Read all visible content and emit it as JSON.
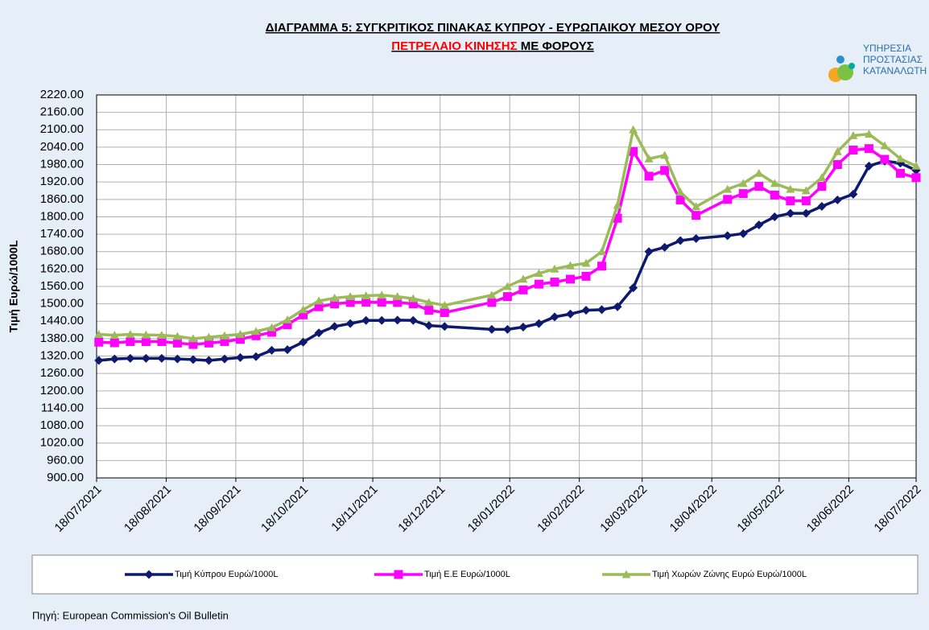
{
  "chart_data": {
    "type": "line",
    "title": "ΔΙΑΓΡΑΜΜΑ 5: ΣΥΓΚΡΙΤΙΚΟΣ ΠΙΝΑΚΑΣ ΚΥΠΡΟΥ - ΕΥΡΩΠΑΙΚΟΥ ΜΕΣΟΥ ΟΡΟΥ",
    "subtitle": [
      "ΠΕΤΡΕΛΑΙΟ ΚΙΝΗΣΗΣ",
      "ΜΕ  ΦΟΡΟΥΣ"
    ],
    "subtitle_colors": [
      "#ff0000",
      "#000000"
    ],
    "ylabel": "Τιμή Ευρώ/1000L",
    "source": "Πηγή: European Commission's Oil Bulletin",
    "logo": [
      "ΥΠΗΡΕΣΙΑ",
      "ΠΡΟΣΤΑΣΙΑΣ",
      "ΚΑΤΑΝΑΛΩΤΗ"
    ],
    "x": [
      "19/07/2021",
      "26/07/2021",
      "02/08/2021",
      "09/08/2021",
      "16/08/2021",
      "23/08/2021",
      "30/08/2021",
      "06/09/2021",
      "13/09/2021",
      "20/09/2021",
      "27/09/2021",
      "04/10/2021",
      "11/10/2021",
      "18/10/2021",
      "25/10/2021",
      "01/11/2021",
      "08/11/2021",
      "15/11/2021",
      "22/11/2021",
      "29/11/2021",
      "06/12/2021",
      "13/12/2021",
      "20/12/2021",
      "10/01/2022",
      "17/01/2022",
      "24/01/2022",
      "31/01/2022",
      "07/02/2022",
      "14/02/2022",
      "21/02/2022",
      "28/02/2022",
      "07/03/2022",
      "14/03/2022",
      "21/03/2022",
      "28/03/2022",
      "04/04/2022",
      "11/04/2022",
      "25/04/2022",
      "02/05/2022",
      "09/05/2022",
      "16/05/2022",
      "23/05/2022",
      "30/05/2022",
      "06/06/2022",
      "13/06/2022",
      "20/06/2022",
      "27/06/2022",
      "04/07/2022",
      "11/07/2022",
      "18/07/2022"
    ],
    "series": [
      {
        "name": "Τιμή Κύπρου Ευρώ/1000L",
        "color": "#0d1a6e",
        "marker": "diamond",
        "values": [
          1305,
          1310,
          1312,
          1312,
          1312,
          1310,
          1308,
          1305,
          1310,
          1315,
          1318,
          1340,
          1342,
          1368,
          1400,
          1422,
          1432,
          1443,
          1443,
          1444,
          1443,
          1425,
          1422,
          1412,
          1412,
          1420,
          1432,
          1455,
          1465,
          1478,
          1480,
          1490,
          1555,
          1680,
          1695,
          1718,
          1725,
          1735,
          1742,
          1772,
          1800,
          1812,
          1812,
          1836,
          1858,
          1878,
          1975,
          1992,
          1985,
          1960
        ]
      },
      {
        "name": "Τιμή Ε.Ε Ευρώ/1000L",
        "color": "#ff00ff",
        "marker": "square",
        "values": [
          1368,
          1366,
          1370,
          1370,
          1370,
          1365,
          1360,
          1365,
          1370,
          1378,
          1390,
          1402,
          1428,
          1462,
          1490,
          1500,
          1505,
          1506,
          1506,
          1505,
          1500,
          1478,
          1470,
          1505,
          1525,
          1548,
          1568,
          1575,
          1585,
          1595,
          1630,
          1795,
          2025,
          1940,
          1960,
          1858,
          1805,
          1860,
          1880,
          1905,
          1875,
          1855,
          1855,
          1905,
          1980,
          2030,
          2035,
          1998,
          1950,
          1935
        ]
      },
      {
        "name": "Τιμή Χωρών Ζώνης Ευρώ Ευρώ/1000L",
        "color": "#9bbb59",
        "marker": "triangle",
        "values": [
          1395,
          1392,
          1395,
          1393,
          1392,
          1388,
          1380,
          1385,
          1390,
          1395,
          1405,
          1418,
          1445,
          1480,
          1510,
          1520,
          1525,
          1528,
          1530,
          1525,
          1518,
          1505,
          1495,
          1530,
          1560,
          1585,
          1605,
          1620,
          1632,
          1640,
          1680,
          1840,
          2100,
          2000,
          2012,
          1885,
          1835,
          1895,
          1915,
          1950,
          1915,
          1895,
          1890,
          1935,
          2025,
          2080,
          2085,
          2045,
          2000,
          1975
        ]
      }
    ],
    "xlim": [
      "18/07/2021",
      "18/07/2022"
    ],
    "xticks": [
      "18/07/2021",
      "18/08/2021",
      "18/09/2021",
      "18/10/2021",
      "18/11/2021",
      "18/12/2021",
      "18/01/2022",
      "18/02/2022",
      "18/03/2022",
      "18/04/2022",
      "18/05/2022",
      "18/06/2022",
      "18/07/2022"
    ],
    "ylim": [
      900,
      2220
    ],
    "yticks": [
      {
        "value": 900,
        "label": "900.00"
      },
      {
        "value": 960,
        "label": "960.00"
      },
      {
        "value": 1020,
        "label": "1020.00"
      },
      {
        "value": 1080,
        "label": "1080.00"
      },
      {
        "value": 1140,
        "label": "1140.00"
      },
      {
        "value": 1200,
        "label": "1200.00"
      },
      {
        "value": 1260,
        "label": "1260.00"
      },
      {
        "value": 1320,
        "label": "1320.00"
      },
      {
        "value": 1380,
        "label": "1380.00"
      },
      {
        "value": 1440,
        "label": "1440.00"
      },
      {
        "value": 1500,
        "label": "1500.00"
      },
      {
        "value": 1560,
        "label": "1560.00"
      },
      {
        "value": 1620,
        "label": "1620.00"
      },
      {
        "value": 1680,
        "label": "1680.00"
      },
      {
        "value": 1740,
        "label": "1740.00"
      },
      {
        "value": 1800,
        "label": "1800.00"
      },
      {
        "value": 1860,
        "label": "1860.00"
      },
      {
        "value": 1920,
        "label": "1920.00"
      },
      {
        "value": 1980,
        "label": "1980.00"
      },
      {
        "value": 2040,
        "label": "2040.00"
      },
      {
        "value": 2100,
        "label": "2100.00"
      },
      {
        "value": 2160,
        "label": "2160.00"
      },
      {
        "value": 2220,
        "label": "2220.00"
      }
    ],
    "grid": true,
    "legend": "bottom"
  }
}
